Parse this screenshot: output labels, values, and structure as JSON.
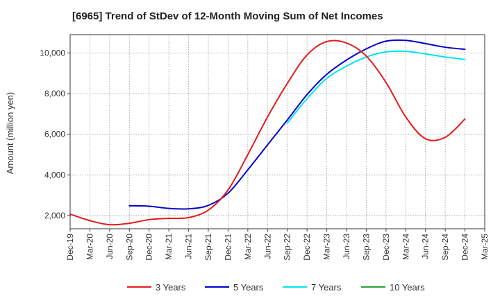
{
  "chart_data": {
    "type": "line",
    "title": "[6965]  Trend of StDev of 12-Month Moving Sum of Net Incomes",
    "xlabel": "",
    "ylabel": "Amount (million yen)",
    "x_tick_labels": [
      "Dec-19",
      "Mar-20",
      "Jun-20",
      "Sep-20",
      "Dec-20",
      "Mar-21",
      "Jun-21",
      "Sep-21",
      "Dec-21",
      "Mar-22",
      "Jun-22",
      "Sep-22",
      "Dec-22",
      "Mar-23",
      "Jun-23",
      "Sep-23",
      "Dec-23",
      "Mar-24",
      "Jun-24",
      "Sep-24",
      "Dec-24",
      "Mar-25"
    ],
    "y_ticks": [
      2000,
      4000,
      6000,
      8000,
      10000
    ],
    "y_tick_labels": [
      "2,000",
      "4,000",
      "6,000",
      "8,000",
      "10,000"
    ],
    "ylim": [
      1350,
      10900
    ],
    "grid": true,
    "legend_position": "bottom",
    "series": [
      {
        "name": "3 Years",
        "color": "#e41a1c",
        "values": [
          2070,
          1750,
          1550,
          1620,
          1800,
          1860,
          1900,
          2270,
          3260,
          5000,
          6850,
          8500,
          9900,
          10560,
          10490,
          9850,
          8550,
          6850,
          5780,
          5850,
          6750,
          null
        ]
      },
      {
        "name": "5 Years",
        "color": "#0000cc",
        "values": [
          null,
          null,
          null,
          2480,
          2460,
          2350,
          2330,
          2500,
          3100,
          4250,
          5480,
          6700,
          7950,
          8950,
          9650,
          10200,
          10580,
          10620,
          10460,
          10280,
          10180,
          null
        ]
      },
      {
        "name": "7 Years",
        "color": "#00e5ee",
        "values": [
          null,
          null,
          null,
          null,
          null,
          null,
          null,
          null,
          null,
          null,
          null,
          6550,
          7750,
          8750,
          9350,
          9800,
          10050,
          10080,
          9950,
          9800,
          9680,
          null
        ]
      },
      {
        "name": "10 Years",
        "color": "#2ca02c",
        "values": [
          null,
          null,
          null,
          null,
          null,
          null,
          null,
          null,
          null,
          null,
          null,
          null,
          null,
          null,
          null,
          null,
          null,
          null,
          null,
          null,
          null,
          null
        ]
      }
    ]
  },
  "colors": {
    "plot_border": "#333333",
    "grid": "#999999",
    "background": "#ffffff"
  }
}
